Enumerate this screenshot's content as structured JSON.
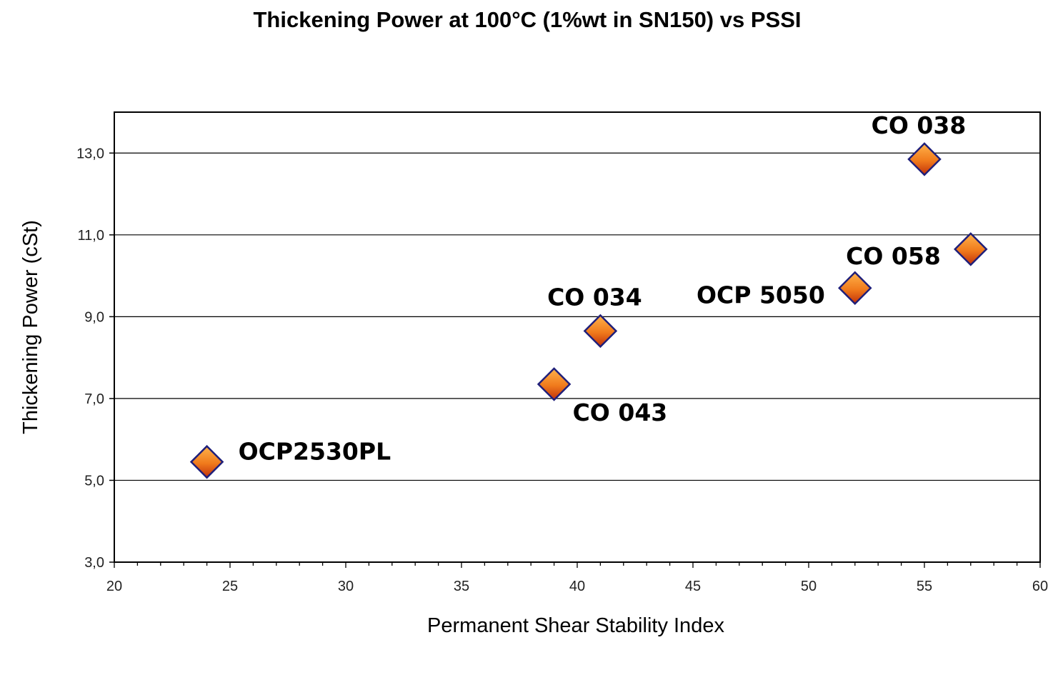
{
  "chart_data": {
    "type": "scatter",
    "title": "Thickening Power at 100°C (1%wt in SN150) vs PSSI",
    "xlabel": "Permanent Shear Stability Index",
    "ylabel": "Thickening Power (cSt)",
    "xlim": [
      20,
      60
    ],
    "ylim": [
      3,
      14
    ],
    "x_ticks": [
      20,
      25,
      30,
      35,
      40,
      45,
      50,
      55,
      60
    ],
    "y_ticks": [
      3.0,
      5.0,
      7.0,
      9.0,
      11.0,
      13.0
    ],
    "x_tick_labels": [
      "20",
      "25",
      "30",
      "35",
      "40",
      "45",
      "50",
      "55",
      "60"
    ],
    "y_tick_labels": [
      "3,0",
      "5,0",
      "7,0",
      "9,0",
      "11,0",
      "13,0"
    ],
    "grid": "horizontal",
    "marker": "diamond",
    "marker_color": "#f07a1c",
    "marker_edge_color": "#1f1f7a",
    "points": [
      {
        "label": "OCP2530PL",
        "x": 24,
        "y": 5.45,
        "label_pos": "right"
      },
      {
        "label": "CO 043",
        "x": 39,
        "y": 7.35,
        "label_pos": "below-right"
      },
      {
        "label": "CO 034",
        "x": 41,
        "y": 8.65,
        "label_pos": "above"
      },
      {
        "label": "OCP 5050",
        "x": 52,
        "y": 9.7,
        "label_pos": "left"
      },
      {
        "label": "CO 038",
        "x": 55,
        "y": 12.85,
        "label_pos": "above"
      },
      {
        "label": "CO 058",
        "x": 57,
        "y": 10.65,
        "label_pos": "left"
      }
    ]
  }
}
